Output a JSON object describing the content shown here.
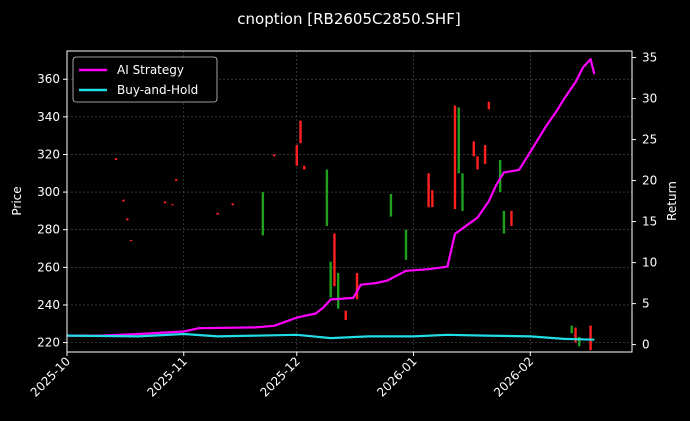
{
  "chart_data": {
    "type": "line",
    "title": "cnoption [RB2605C2850.SHF]",
    "ylabel_left": "Price",
    "ylabel_right": "Return",
    "x_ticks": [
      "2025-10",
      "2025-11",
      "2025-12",
      "2026-01",
      "2026-02"
    ],
    "y_left_ticks": [
      220,
      240,
      260,
      280,
      300,
      320,
      340,
      360
    ],
    "y_left_range": [
      215,
      375
    ],
    "y_right_ticks": [
      0,
      5,
      10,
      15,
      20,
      25,
      30,
      35
    ],
    "y_right_range": [
      -0.9,
      35.8
    ],
    "x_range": [
      "2025-10-01",
      "2026-02-28"
    ],
    "grid": true,
    "legend_position": "top-left",
    "colors": {
      "background": "#000000",
      "ai_strategy": "#ff00ff",
      "buy_and_hold": "#22dde6",
      "candle_up": "#ff2020",
      "candle_down": "#1fa01f",
      "grid": "#555555"
    },
    "series": [
      {
        "name": "AI Strategy",
        "axis": "right",
        "points": [
          [
            "2025-10-01",
            1.1
          ],
          [
            "2025-10-10",
            1.1
          ],
          [
            "2025-10-20",
            1.3
          ],
          [
            "2025-11-01",
            1.6
          ],
          [
            "2025-11-05",
            2.0
          ],
          [
            "2025-11-20",
            2.1
          ],
          [
            "2025-11-25",
            2.3
          ],
          [
            "2025-11-28",
            2.8
          ],
          [
            "2025-12-01",
            3.3
          ],
          [
            "2025-12-06",
            3.8
          ],
          [
            "2025-12-08",
            4.5
          ],
          [
            "2025-12-10",
            5.5
          ],
          [
            "2025-12-16",
            5.7
          ],
          [
            "2025-12-18",
            7.3
          ],
          [
            "2025-12-22",
            7.5
          ],
          [
            "2025-12-25",
            7.8
          ],
          [
            "2025-12-30",
            9.0
          ],
          [
            "2026-01-05",
            9.2
          ],
          [
            "2026-01-10",
            9.5
          ],
          [
            "2026-01-12",
            13.5
          ],
          [
            "2026-01-15",
            14.5
          ],
          [
            "2026-01-18",
            15.5
          ],
          [
            "2026-01-21",
            17.5
          ],
          [
            "2026-01-23",
            19.5
          ],
          [
            "2026-01-25",
            21.0
          ],
          [
            "2026-01-29",
            21.3
          ],
          [
            "2026-02-01",
            23.5
          ],
          [
            "2026-02-05",
            26.5
          ],
          [
            "2026-02-08",
            28.5
          ],
          [
            "2026-02-10",
            30.0
          ],
          [
            "2026-02-13",
            32.0
          ],
          [
            "2026-02-15",
            33.8
          ],
          [
            "2026-02-17",
            34.8
          ],
          [
            "2026-02-18",
            33.0
          ]
        ]
      },
      {
        "name": "Buy-and-Hold",
        "axis": "right",
        "points": [
          [
            "2025-10-01",
            1.1
          ],
          [
            "2025-10-20",
            1.0
          ],
          [
            "2025-11-01",
            1.3
          ],
          [
            "2025-11-10",
            1.0
          ],
          [
            "2025-12-01",
            1.2
          ],
          [
            "2025-12-10",
            0.8
          ],
          [
            "2025-12-20",
            1.0
          ],
          [
            "2026-01-01",
            1.0
          ],
          [
            "2026-01-10",
            1.2
          ],
          [
            "2026-01-20",
            1.1
          ],
          [
            "2026-02-01",
            1.0
          ],
          [
            "2026-02-10",
            0.7
          ],
          [
            "2026-02-18",
            0.6
          ]
        ]
      }
    ],
    "candles": [
      {
        "date": "2025-10-14",
        "open": 317,
        "close": 318,
        "dir": "up"
      },
      {
        "date": "2025-10-16",
        "open": 295,
        "close": 296,
        "dir": "up"
      },
      {
        "date": "2025-10-17",
        "open": 285,
        "close": 286,
        "dir": "up"
      },
      {
        "date": "2025-10-18",
        "open": 274,
        "close": 274.6,
        "dir": "up"
      },
      {
        "date": "2025-10-27",
        "open": 294,
        "close": 295,
        "dir": "up"
      },
      {
        "date": "2025-10-29",
        "open": 293,
        "close": 293.6,
        "dir": "up"
      },
      {
        "date": "2025-10-30",
        "open": 306,
        "close": 307,
        "dir": "up"
      },
      {
        "date": "2025-11-10",
        "open": 288,
        "close": 289,
        "dir": "up"
      },
      {
        "date": "2025-11-14",
        "open": 293,
        "close": 294,
        "dir": "up"
      },
      {
        "date": "2025-11-22",
        "open": 277,
        "close": 300,
        "dir": "down"
      },
      {
        "date": "2025-11-25",
        "open": 319,
        "close": 320,
        "dir": "up"
      },
      {
        "date": "2025-12-01",
        "open": 314,
        "close": 325,
        "dir": "up"
      },
      {
        "date": "2025-12-02",
        "open": 326,
        "close": 338,
        "dir": "up"
      },
      {
        "date": "2025-12-03",
        "open": 312,
        "close": 314,
        "dir": "up"
      },
      {
        "date": "2025-12-09",
        "open": 282,
        "close": 312,
        "dir": "down"
      },
      {
        "date": "2025-12-10",
        "open": 244,
        "close": 263,
        "dir": "down"
      },
      {
        "date": "2025-12-11",
        "open": 250,
        "close": 278,
        "dir": "up"
      },
      {
        "date": "2025-12-12",
        "open": 238,
        "close": 257,
        "dir": "down"
      },
      {
        "date": "2025-12-14",
        "open": 232,
        "close": 237,
        "dir": "up"
      },
      {
        "date": "2025-12-17",
        "open": 243,
        "close": 257,
        "dir": "up"
      },
      {
        "date": "2025-12-26",
        "open": 287,
        "close": 299,
        "dir": "down"
      },
      {
        "date": "2025-12-30",
        "open": 264,
        "close": 280,
        "dir": "down"
      },
      {
        "date": "2026-01-05",
        "open": 292,
        "close": 310,
        "dir": "up"
      },
      {
        "date": "2026-01-06",
        "open": 292,
        "close": 301,
        "dir": "up"
      },
      {
        "date": "2026-01-12",
        "open": 291,
        "close": 346,
        "dir": "up"
      },
      {
        "date": "2026-01-13",
        "open": 310,
        "close": 345,
        "dir": "down"
      },
      {
        "date": "2026-01-14",
        "open": 290,
        "close": 310,
        "dir": "down"
      },
      {
        "date": "2026-01-17",
        "open": 319,
        "close": 327,
        "dir": "up"
      },
      {
        "date": "2026-01-18",
        "open": 312,
        "close": 319,
        "dir": "up"
      },
      {
        "date": "2026-01-20",
        "open": 315,
        "close": 325,
        "dir": "up"
      },
      {
        "date": "2026-01-21",
        "open": 344,
        "close": 348,
        "dir": "up"
      },
      {
        "date": "2026-01-24",
        "open": 300,
        "close": 317,
        "dir": "down"
      },
      {
        "date": "2026-01-25",
        "open": 278,
        "close": 290,
        "dir": "down"
      },
      {
        "date": "2026-01-27",
        "open": 282,
        "close": 290,
        "dir": "up"
      },
      {
        "date": "2026-02-12",
        "open": 225,
        "close": 229,
        "dir": "down"
      },
      {
        "date": "2026-02-13",
        "open": 220,
        "close": 228,
        "dir": "up"
      },
      {
        "date": "2026-02-14",
        "open": 218,
        "close": 223,
        "dir": "down"
      },
      {
        "date": "2026-02-17",
        "open": 216,
        "close": 229,
        "dir": "up"
      }
    ]
  }
}
